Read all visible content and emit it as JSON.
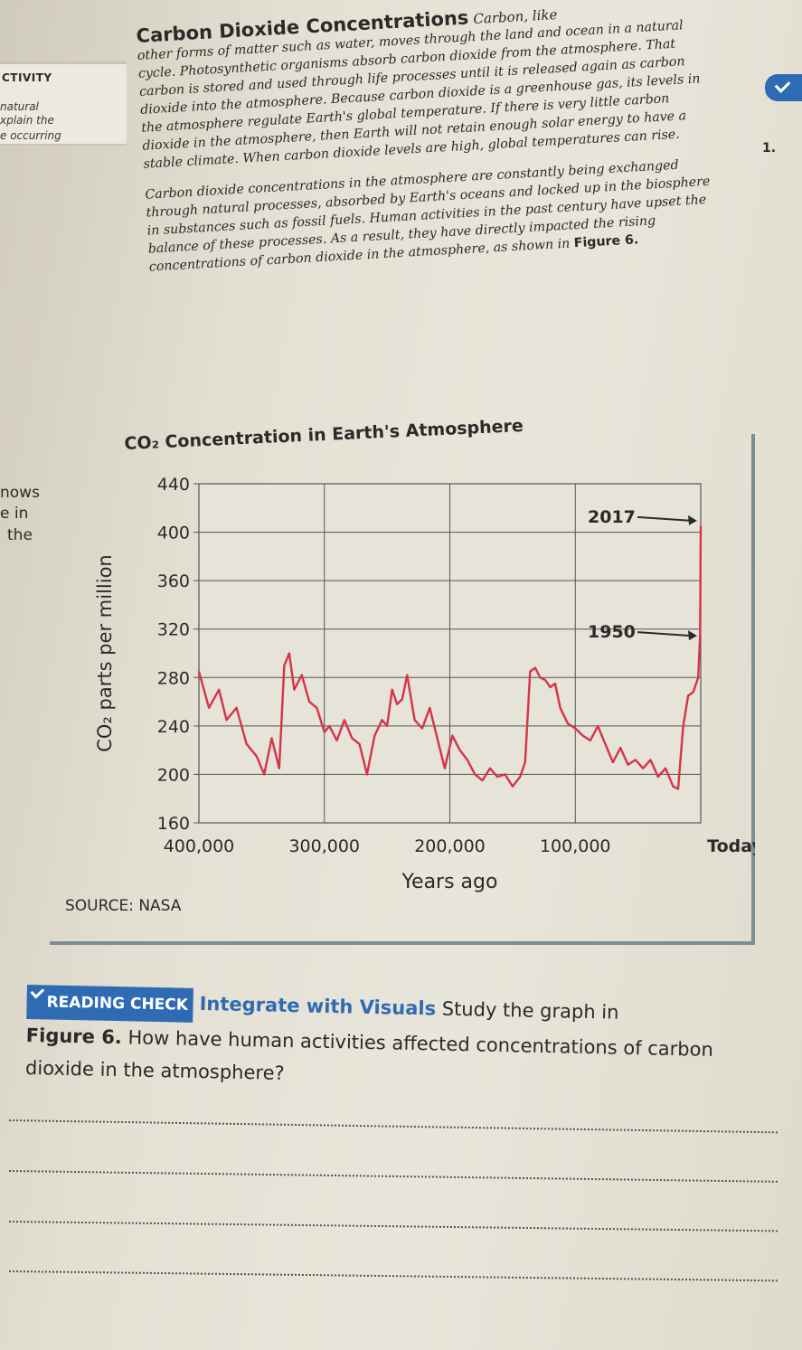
{
  "sidebar": {
    "heading": "CTIVITY",
    "lines": [
      "natural",
      "xplain the",
      "e occurring"
    ]
  },
  "margin_fragments": [
    "nows",
    "e in",
    "the"
  ],
  "question_number": "1.",
  "section": {
    "title": "Carbon Dioxide Concentrations",
    "title_tail": "Carbon, like",
    "paragraph1": "other forms of matter such as water, moves through the land and ocean in a natural cycle. Photosynthetic organisms absorb carbon dioxide from the atmosphere. That carbon is stored and used through life processes until it is released again as carbon dioxide into the atmosphere. Because carbon dioxide is a greenhouse gas, its levels in the atmosphere regulate Earth's global temperature. If there is very little carbon dioxide in the atmosphere, then Earth will not retain enough solar energy to have a stable climate. When carbon dioxide levels are high, global temperatures can rise.",
    "paragraph2": "Carbon dioxide concentrations in the atmosphere are constantly being exchanged through natural processes, absorbed by Earth's oceans and locked up in the biosphere in substances such as fossil fuels. Human activities in the past century have upset the balance of these processes. As a result, they have directly impacted the rising concentrations of carbon dioxide in the atmosphere, as shown in",
    "figure_ref": "Figure 6."
  },
  "figure": {
    "title": "CO₂ Concentration in Earth's Atmosphere",
    "source": "SOURCE: NASA"
  },
  "chart_data": {
    "type": "line",
    "title": "CO₂ Concentration in Earth's Atmosphere",
    "xlabel": "Years ago",
    "ylabel": "CO₂ parts per million",
    "ylim": [
      160,
      440
    ],
    "yticks": [
      440,
      400,
      360,
      320,
      280,
      240,
      200,
      160
    ],
    "x_tick_labels": [
      "400,000",
      "300,000",
      "200,000",
      "100,000",
      "Today"
    ],
    "xlim": [
      400000,
      0
    ],
    "grid": true,
    "annotations": [
      {
        "label": "2017",
        "x": 0,
        "y": 405
      },
      {
        "label": "1950",
        "x": 0,
        "y": 310
      }
    ],
    "series": [
      {
        "color": "#d63447",
        "points": [
          [
            400000,
            285
          ],
          [
            392000,
            255
          ],
          [
            384000,
            270
          ],
          [
            378000,
            245
          ],
          [
            370000,
            255
          ],
          [
            362000,
            225
          ],
          [
            354000,
            215
          ],
          [
            348000,
            200
          ],
          [
            342000,
            230
          ],
          [
            336000,
            205
          ],
          [
            332000,
            290
          ],
          [
            328000,
            300
          ],
          [
            324000,
            270
          ],
          [
            318000,
            282
          ],
          [
            312000,
            260
          ],
          [
            306000,
            255
          ],
          [
            300000,
            235
          ],
          [
            296000,
            240
          ],
          [
            290000,
            228
          ],
          [
            284000,
            245
          ],
          [
            278000,
            230
          ],
          [
            272000,
            225
          ],
          [
            266000,
            200
          ],
          [
            260000,
            232
          ],
          [
            254000,
            245
          ],
          [
            250000,
            240
          ],
          [
            246000,
            270
          ],
          [
            242000,
            258
          ],
          [
            238000,
            262
          ],
          [
            234000,
            282
          ],
          [
            228000,
            245
          ],
          [
            222000,
            238
          ],
          [
            216000,
            255
          ],
          [
            210000,
            230
          ],
          [
            204000,
            205
          ],
          [
            198000,
            232
          ],
          [
            192000,
            220
          ],
          [
            186000,
            212
          ],
          [
            180000,
            200
          ],
          [
            174000,
            195
          ],
          [
            168000,
            205
          ],
          [
            162000,
            198
          ],
          [
            156000,
            200
          ],
          [
            150000,
            190
          ],
          [
            144000,
            198
          ],
          [
            140000,
            210
          ],
          [
            136000,
            285
          ],
          [
            132000,
            288
          ],
          [
            128000,
            280
          ],
          [
            124000,
            278
          ],
          [
            120000,
            272
          ],
          [
            116000,
            275
          ],
          [
            112000,
            255
          ],
          [
            106000,
            242
          ],
          [
            100000,
            238
          ],
          [
            94000,
            232
          ],
          [
            88000,
            228
          ],
          [
            82000,
            240
          ],
          [
            76000,
            225
          ],
          [
            70000,
            210
          ],
          [
            64000,
            222
          ],
          [
            58000,
            208
          ],
          [
            52000,
            212
          ],
          [
            46000,
            205
          ],
          [
            40000,
            212
          ],
          [
            34000,
            198
          ],
          [
            28000,
            205
          ],
          [
            22000,
            190
          ],
          [
            18000,
            188
          ],
          [
            14000,
            240
          ],
          [
            10000,
            265
          ],
          [
            6000,
            268
          ],
          [
            2000,
            280
          ],
          [
            500,
            315
          ],
          [
            0,
            405
          ]
        ]
      }
    ]
  },
  "reading_check": {
    "badge": "READING CHECK",
    "heading": "Integrate with Visuals",
    "prompt": "Study the graph in",
    "figure_ref": "Figure 6.",
    "question": "How have human activities affected concentrations of carbon dioxide in the atmosphere?"
  }
}
